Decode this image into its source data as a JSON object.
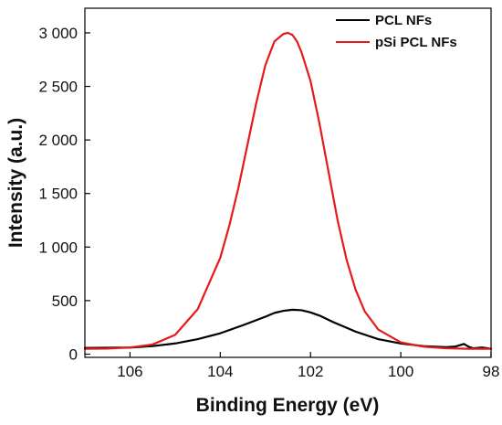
{
  "chart_data": {
    "type": "line",
    "xlabel": "Binding Energy (eV)",
    "ylabel": "Intensity (a.u.)",
    "xlim": [
      107,
      98
    ],
    "ylim": [
      -30,
      3230
    ],
    "x_reversed": true,
    "x_ticks": [
      106,
      104,
      102,
      100,
      98
    ],
    "x_tick_labels": [
      "106",
      "104",
      "102",
      "100",
      "98"
    ],
    "y_ticks": [
      0,
      500,
      1000,
      1500,
      2000,
      2500,
      3000
    ],
    "y_tick_labels": [
      "0",
      "500",
      "1 000",
      "1 500",
      "2 000",
      "2 500",
      "3 000"
    ],
    "grid": false,
    "legend_position": "top-right",
    "series": [
      {
        "name": "PCL NFs",
        "color": "#000000",
        "x": [
          107.0,
          106.0,
          105.5,
          105.0,
          104.5,
          104.0,
          103.5,
          103.0,
          102.8,
          102.6,
          102.4,
          102.2,
          102.0,
          101.8,
          101.5,
          101.0,
          100.5,
          100.0,
          99.5,
          99.0,
          98.8,
          98.6,
          98.5,
          98.4,
          98.2,
          98.0
        ],
        "values": [
          58,
          62,
          75,
          100,
          140,
          195,
          270,
          350,
          385,
          405,
          415,
          410,
          390,
          360,
          300,
          210,
          140,
          100,
          75,
          65,
          70,
          95,
          70,
          55,
          62,
          50
        ]
      },
      {
        "name": "pSi PCL NFs",
        "color": "#e41a1c",
        "x": [
          107.0,
          106.5,
          106.0,
          105.5,
          105.0,
          104.5,
          104.0,
          103.8,
          103.6,
          103.4,
          103.2,
          103.0,
          102.8,
          102.6,
          102.5,
          102.4,
          102.3,
          102.2,
          102.0,
          101.8,
          101.6,
          101.4,
          101.2,
          101.0,
          100.8,
          100.5,
          100.0,
          99.5,
          99.0,
          98.5,
          98.0
        ],
        "values": [
          50,
          52,
          62,
          90,
          180,
          420,
          900,
          1200,
          1550,
          1950,
          2350,
          2700,
          2920,
          2990,
          3000,
          2980,
          2920,
          2820,
          2550,
          2150,
          1700,
          1250,
          880,
          600,
          400,
          230,
          110,
          70,
          55,
          50,
          50
        ]
      }
    ]
  }
}
